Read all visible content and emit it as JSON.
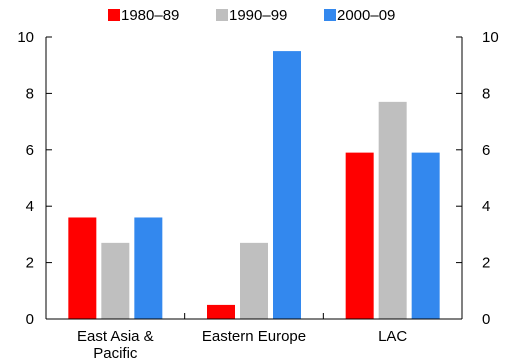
{
  "chart_data": {
    "type": "bar",
    "categories": [
      "East Asia & Pacific",
      "Eastern Europe",
      "LAC"
    ],
    "category_lines": [
      [
        "East Asia &",
        "Pacific"
      ],
      [
        "Eastern Europe"
      ],
      [
        "LAC"
      ]
    ],
    "series": [
      {
        "name": "1980–89",
        "color": "#ff0000",
        "values": [
          3.6,
          0.5,
          5.9
        ]
      },
      {
        "name": "1990–99",
        "color": "#bfbfbf",
        "values": [
          2.7,
          2.7,
          7.7
        ]
      },
      {
        "name": "2000–09",
        "color": "#3388ee",
        "values": [
          3.6,
          9.5,
          5.9
        ]
      }
    ],
    "ylim": [
      0,
      10
    ],
    "yticks": [
      0,
      2,
      4,
      6,
      8,
      10
    ],
    "ytick_labels": [
      "0",
      "2",
      "4",
      "6",
      "8",
      "10"
    ],
    "y2tick_labels": [
      "0",
      "2",
      "4",
      "6",
      "8",
      "10"
    ],
    "legend": "top",
    "grid": false
  }
}
